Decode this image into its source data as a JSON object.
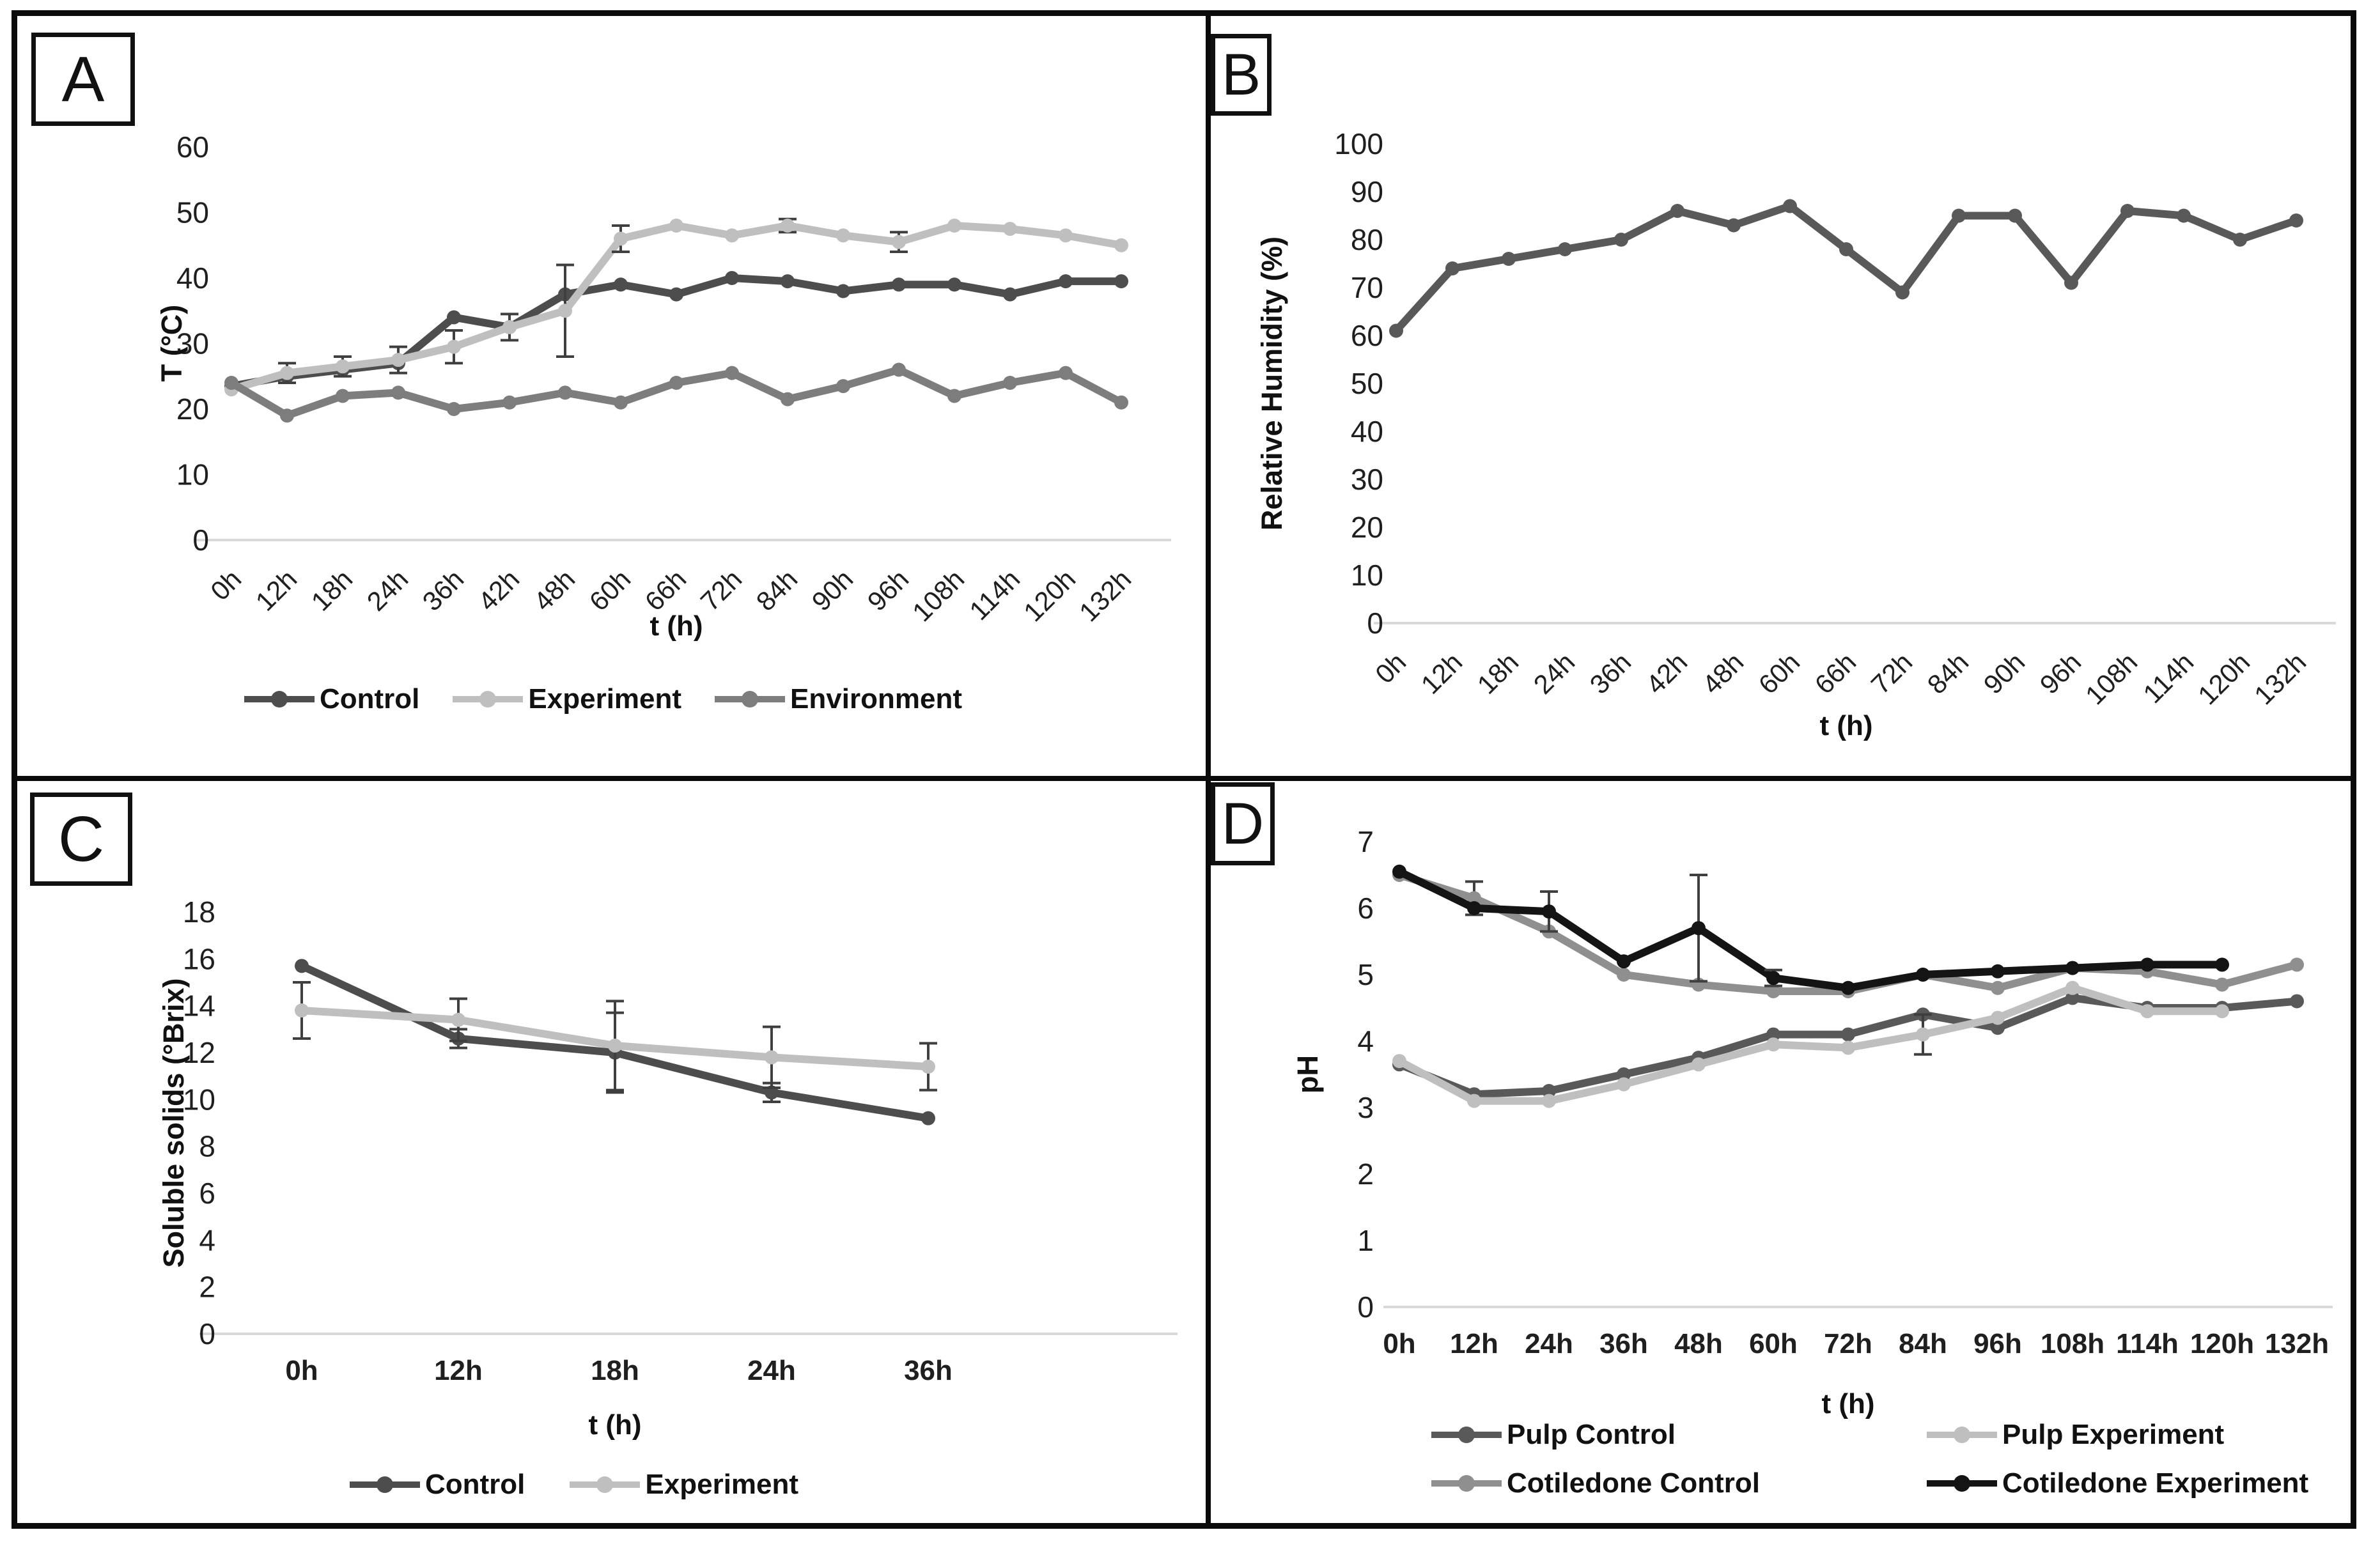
{
  "figure": {
    "background": "#ffffff",
    "border_color": "#0a0a0a"
  },
  "chart_data": [
    {
      "panel": "A",
      "type": "line",
      "title": "",
      "xlabel": "t (h)",
      "ylabel": "T (°C)",
      "categories": [
        "0h",
        "12h",
        "18h",
        "24h",
        "36h",
        "42h",
        "48h",
        "60h",
        "66h",
        "72h",
        "84h",
        "90h",
        "96h",
        "108h",
        "114h",
        "120h",
        "132h"
      ],
      "ylim": [
        0,
        60
      ],
      "yticks": [
        0,
        10,
        20,
        30,
        40,
        50,
        60
      ],
      "grid": "off",
      "legend_position": "bottom",
      "series": [
        {
          "name": "Control",
          "color": "#4d4d4d",
          "values": [
            23.5,
            25,
            26,
            27,
            34,
            32.5,
            37.5,
            39,
            37.5,
            40,
            39.5,
            38,
            39,
            39,
            37.5,
            39.5,
            39.5
          ],
          "err": [
            0,
            0,
            0,
            0,
            0,
            2,
            0,
            0,
            0,
            0,
            0,
            0,
            0,
            0,
            0,
            0,
            0
          ]
        },
        {
          "name": "Experiment",
          "color": "#bfbfbf",
          "values": [
            23,
            25.5,
            26.5,
            27.5,
            29.5,
            32.5,
            35,
            46,
            48,
            46.5,
            48,
            46.5,
            45.5,
            48,
            47.5,
            46.5,
            45
          ],
          "err": [
            0,
            1.5,
            1.5,
            2,
            2.5,
            0,
            7,
            2,
            0,
            0,
            1,
            0,
            1.5,
            0,
            0,
            0,
            0
          ]
        },
        {
          "name": "Environment",
          "color": "#7d7d7d",
          "values": [
            24,
            19,
            22,
            22.5,
            20,
            21,
            22.5,
            21,
            24,
            25.5,
            21.5,
            23.5,
            26,
            22,
            24,
            25.5,
            21
          ]
        }
      ]
    },
    {
      "panel": "B",
      "type": "line",
      "title": "",
      "xlabel": "t (h)",
      "ylabel": "Relative Humidity (%)",
      "categories": [
        "0h",
        "12h",
        "18h",
        "24h",
        "36h",
        "42h",
        "48h",
        "60h",
        "66h",
        "72h",
        "84h",
        "90h",
        "96h",
        "108h",
        "114h",
        "120h",
        "132h"
      ],
      "ylim": [
        0,
        100
      ],
      "yticks": [
        0,
        10,
        20,
        30,
        40,
        50,
        60,
        70,
        80,
        90,
        100
      ],
      "grid": "off",
      "legend_position": "none",
      "series": [
        {
          "name": "Relative Humidity",
          "color": "#595959",
          "values": [
            61,
            74,
            76,
            78,
            80,
            86,
            83,
            87,
            78,
            69,
            85,
            85,
            71,
            86,
            85,
            80,
            84
          ]
        }
      ]
    },
    {
      "panel": "C",
      "type": "line",
      "title": "",
      "xlabel": "t (h)",
      "ylabel": "Soluble solids (°Brix)",
      "categories": [
        "0h",
        "12h",
        "18h",
        "24h",
        "36h"
      ],
      "ylim": [
        0,
        18
      ],
      "yticks": [
        0,
        2,
        4,
        6,
        8,
        10,
        12,
        14,
        16,
        18
      ],
      "grid": "off",
      "legend_position": "bottom",
      "series": [
        {
          "name": "Control",
          "color": "#4d4d4d",
          "values": [
            15.7,
            12.6,
            12.0,
            10.3,
            9.2
          ],
          "err": [
            0,
            0.4,
            1.7,
            0.4,
            0
          ]
        },
        {
          "name": "Experiment",
          "color": "#bfbfbf",
          "values": [
            13.8,
            13.4,
            12.3,
            11.8,
            11.4
          ],
          "err": [
            1.2,
            0.9,
            1.9,
            1.3,
            1.0
          ]
        }
      ]
    },
    {
      "panel": "D",
      "type": "line",
      "title": "",
      "xlabel": "t (h)",
      "ylabel": "pH",
      "categories": [
        "0h",
        "12h",
        "24h",
        "36h",
        "48h",
        "60h",
        "72h",
        "84h",
        "96h",
        "108h",
        "114h",
        "120h",
        "132h"
      ],
      "ylim": [
        0,
        7
      ],
      "yticks": [
        0,
        1,
        2,
        3,
        4,
        5,
        6,
        7
      ],
      "grid": "off",
      "legend_position": "bottom-two-columns",
      "series": [
        {
          "name": "Pulp Control",
          "color": "#595959",
          "values": [
            3.65,
            3.2,
            3.25,
            3.5,
            3.75,
            4.1,
            4.1,
            4.4,
            4.2,
            4.65,
            4.5,
            4.5,
            4.6
          ]
        },
        {
          "name": "Pulp Experiment",
          "color": "#bfbfbf",
          "values": [
            3.7,
            3.1,
            3.1,
            3.35,
            3.65,
            3.95,
            3.9,
            4.1,
            4.35,
            4.8,
            4.45,
            4.45,
            null
          ],
          "err": [
            0,
            0,
            0,
            0,
            0,
            0,
            0,
            0.3,
            0,
            0,
            0,
            0,
            0
          ]
        },
        {
          "name": "Cotiledone Control",
          "color": "#8f8f8f",
          "values": [
            6.5,
            6.15,
            5.65,
            5.0,
            4.85,
            4.75,
            4.75,
            5.0,
            4.8,
            5.1,
            5.05,
            4.85,
            5.15
          ],
          "err": [
            0,
            0.25,
            0,
            0,
            0,
            0,
            0,
            0,
            0,
            0,
            0,
            0,
            0
          ]
        },
        {
          "name": "Cotiledone Experiment",
          "color": "#141414",
          "values": [
            6.55,
            6.0,
            5.95,
            5.2,
            5.7,
            4.95,
            4.8,
            5.0,
            5.05,
            5.1,
            5.15,
            5.15,
            null
          ],
          "err": [
            0,
            0,
            0.3,
            0,
            0.8,
            0.12,
            0,
            0,
            0,
            0,
            0,
            0,
            0
          ]
        }
      ]
    }
  ]
}
